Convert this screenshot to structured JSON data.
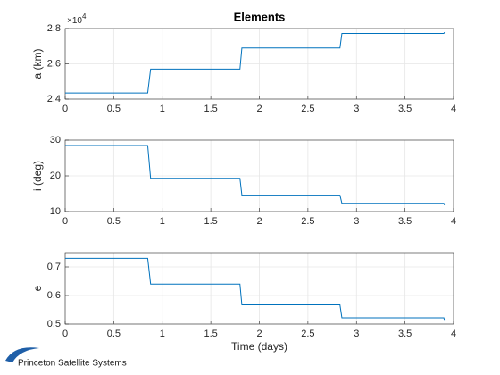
{
  "chart_data": [
    {
      "type": "line",
      "title": "Elements",
      "ylabel": "a (km)",
      "y_multiplier": {
        "base": "×10",
        "exponent": "4"
      },
      "x": [
        0,
        0.85,
        0.88,
        1.8,
        1.82,
        2.83,
        2.85,
        3.9,
        3.905
      ],
      "values": [
        24350,
        24350,
        25700,
        25700,
        26900,
        26900,
        27720,
        27720,
        27790
      ],
      "color": "#0072bd",
      "xlim": [
        0,
        4
      ],
      "xticks": [
        0,
        0.5,
        1,
        1.5,
        2,
        2.5,
        3,
        3.5,
        4
      ],
      "ylim": [
        24000,
        28000
      ],
      "yticks": [
        {
          "value": 24000,
          "label": "2.4"
        },
        {
          "value": 26000,
          "label": "2.6"
        },
        {
          "value": 28000,
          "label": "2.8"
        }
      ],
      "grid": true
    },
    {
      "type": "line",
      "ylabel": "i (deg)",
      "x": [
        0,
        0.85,
        0.88,
        1.8,
        1.82,
        2.83,
        2.85,
        3.9,
        3.905
      ],
      "values": [
        28.5,
        28.5,
        19.3,
        19.3,
        14.6,
        14.6,
        12.3,
        12.3,
        11.8
      ],
      "color": "#0072bd",
      "xlim": [
        0,
        4
      ],
      "xticks": [
        0,
        0.5,
        1,
        1.5,
        2,
        2.5,
        3,
        3.5,
        4
      ],
      "ylim": [
        10,
        30
      ],
      "yticks": [
        10,
        20,
        30
      ],
      "grid": true
    },
    {
      "type": "line",
      "ylabel": "e",
      "xlabel": "Time (days)",
      "x": [
        0,
        0.85,
        0.88,
        1.8,
        1.82,
        2.83,
        2.85,
        3.9,
        3.905
      ],
      "values": [
        0.73,
        0.73,
        0.64,
        0.64,
        0.567,
        0.567,
        0.522,
        0.522,
        0.515
      ],
      "color": "#0072bd",
      "xlim": [
        0,
        4
      ],
      "xticks": [
        0,
        0.5,
        1,
        1.5,
        2,
        2.5,
        3,
        3.5,
        4
      ],
      "ylim": [
        0.5,
        0.75
      ],
      "yticks": [
        0.5,
        0.6,
        0.7
      ],
      "grid": true
    }
  ],
  "footer": "Princeton Satellite Systems"
}
